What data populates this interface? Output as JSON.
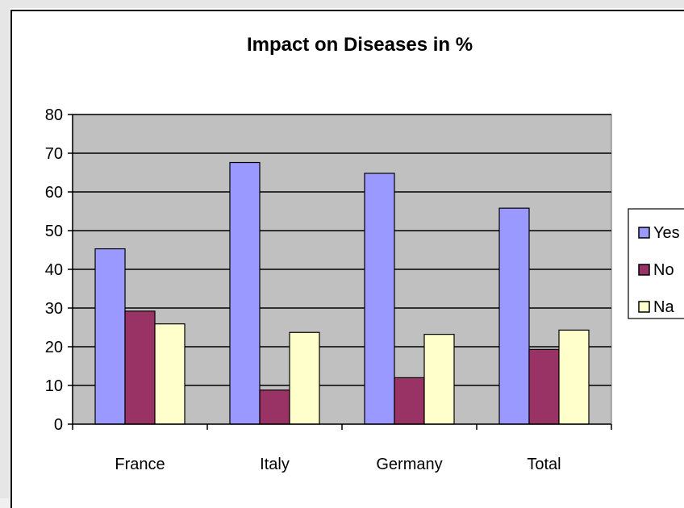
{
  "chart_data": {
    "type": "bar",
    "title": "Impact on Diseases in %",
    "categories": [
      "France",
      "Italy",
      "Germany",
      "Total"
    ],
    "series": [
      {
        "name": "Yes",
        "values": [
          45.3,
          67.6,
          64.8,
          55.8
        ],
        "color": "#9999ff"
      },
      {
        "name": "No",
        "values": [
          29.2,
          8.8,
          12.0,
          19.3
        ],
        "color": "#993366"
      },
      {
        "name": "Na",
        "values": [
          25.9,
          23.7,
          23.2,
          24.3
        ],
        "color": "#ffffcc"
      }
    ],
    "ylim": [
      0,
      80
    ],
    "yticks": [
      0,
      10,
      20,
      30,
      40,
      50,
      60,
      70,
      80
    ],
    "grid": true,
    "plot_background": "#c0c0c0",
    "legend_position": "right"
  }
}
